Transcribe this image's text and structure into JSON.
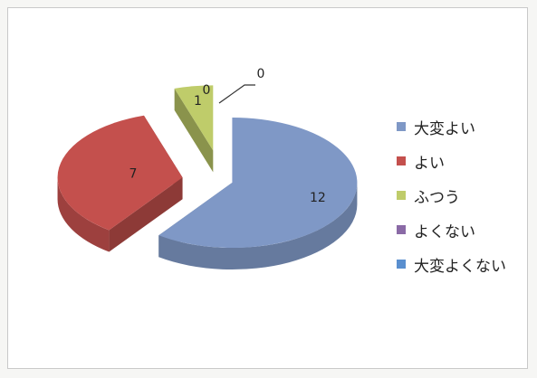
{
  "chart_data": {
    "type": "pie",
    "style": "3d-exploded",
    "categories": [
      "大変よい",
      "よい",
      "ふつう",
      "よくない",
      "大変よくない"
    ],
    "values": [
      12,
      7,
      1,
      0,
      0
    ],
    "data_labels": [
      "12",
      "7",
      "1",
      "0",
      "0"
    ],
    "colors": [
      "#7f98c6",
      "#c4504d",
      "#bfcc6a",
      "#8a6aa6",
      "#5a8fcf"
    ],
    "legend_position": "right",
    "title": ""
  }
}
